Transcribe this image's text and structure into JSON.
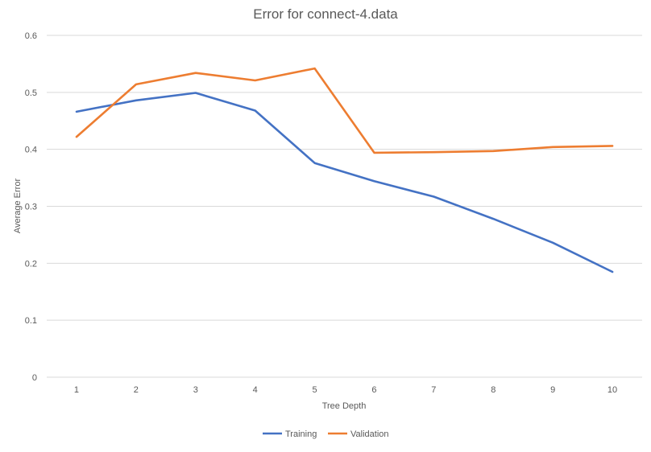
{
  "chart_data": {
    "type": "line",
    "title": "Error for connect-4.data",
    "xlabel": "Tree Depth",
    "ylabel": "Average Error",
    "categories": [
      "1",
      "2",
      "3",
      "4",
      "5",
      "6",
      "7",
      "8",
      "9",
      "10"
    ],
    "ylim": [
      0,
      0.6
    ],
    "yticks": [
      0,
      0.1,
      0.2,
      0.3,
      0.4,
      0.5,
      0.6
    ],
    "ytick_labels": [
      "0",
      "0.1",
      "0.2",
      "0.3",
      "0.4",
      "0.5",
      "0.6"
    ],
    "grid": "horizontal",
    "legend_position": "bottom",
    "series": [
      {
        "name": "Training",
        "color": "#4472c4",
        "values": [
          0.466,
          0.486,
          0.499,
          0.468,
          0.376,
          0.344,
          0.317,
          0.278,
          0.236,
          0.185
        ]
      },
      {
        "name": "Validation",
        "color": "#ed7d31",
        "values": [
          0.422,
          0.514,
          0.534,
          0.521,
          0.542,
          0.394,
          0.395,
          0.397,
          0.404,
          0.406
        ]
      }
    ]
  }
}
